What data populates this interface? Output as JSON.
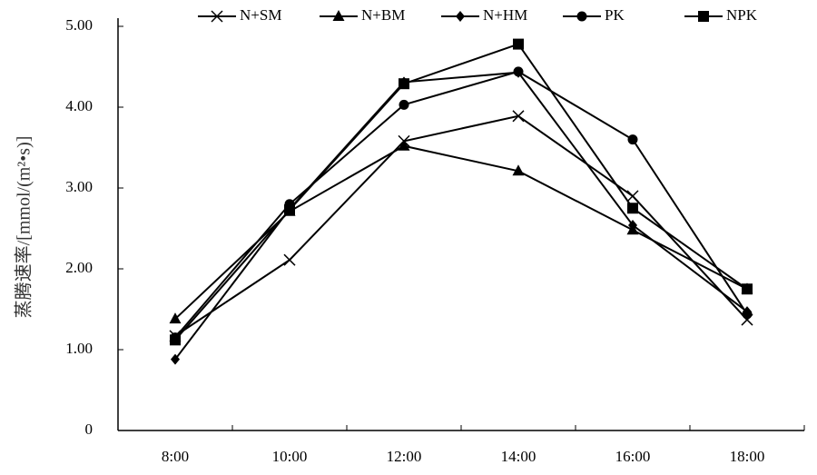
{
  "chart_data": {
    "type": "line",
    "y_label": "蒸腾速率/[mmol/(m²•s)]",
    "categories": [
      "8:00",
      "10:00",
      "12:00",
      "14:00",
      "16:00",
      "18:00"
    ],
    "series": [
      {
        "name": "N+SM",
        "marker": "cross",
        "color": "#000000",
        "values": [
          1.17,
          2.11,
          3.58,
          3.89,
          2.9,
          1.37
        ]
      },
      {
        "name": "N+BM",
        "marker": "triangle",
        "color": "#000000",
        "values": [
          1.38,
          2.71,
          3.52,
          3.21,
          2.48,
          1.75
        ]
      },
      {
        "name": "N+HM",
        "marker": "diamond",
        "color": "#000000",
        "values": [
          0.88,
          2.74,
          4.31,
          4.43,
          2.54,
          1.47
        ]
      },
      {
        "name": "PK",
        "marker": "circle",
        "color": "#000000",
        "values": [
          1.15,
          2.8,
          4.03,
          4.44,
          3.6,
          1.44
        ]
      },
      {
        "name": "NPK",
        "marker": "square",
        "color": "#000000",
        "values": [
          1.12,
          2.73,
          4.29,
          4.78,
          2.75,
          1.75
        ]
      }
    ],
    "ylim": [
      0,
      5
    ],
    "yticks": [
      0,
      {
        "value": 1,
        "label": "1.00"
      },
      {
        "value": 2,
        "label": "2.00"
      },
      {
        "value": 3,
        "label": "3.00"
      },
      {
        "value": 4,
        "label": "4.00"
      },
      {
        "value": 5,
        "label": "5.00"
      }
    ],
    "grid": false,
    "legend": "top"
  }
}
